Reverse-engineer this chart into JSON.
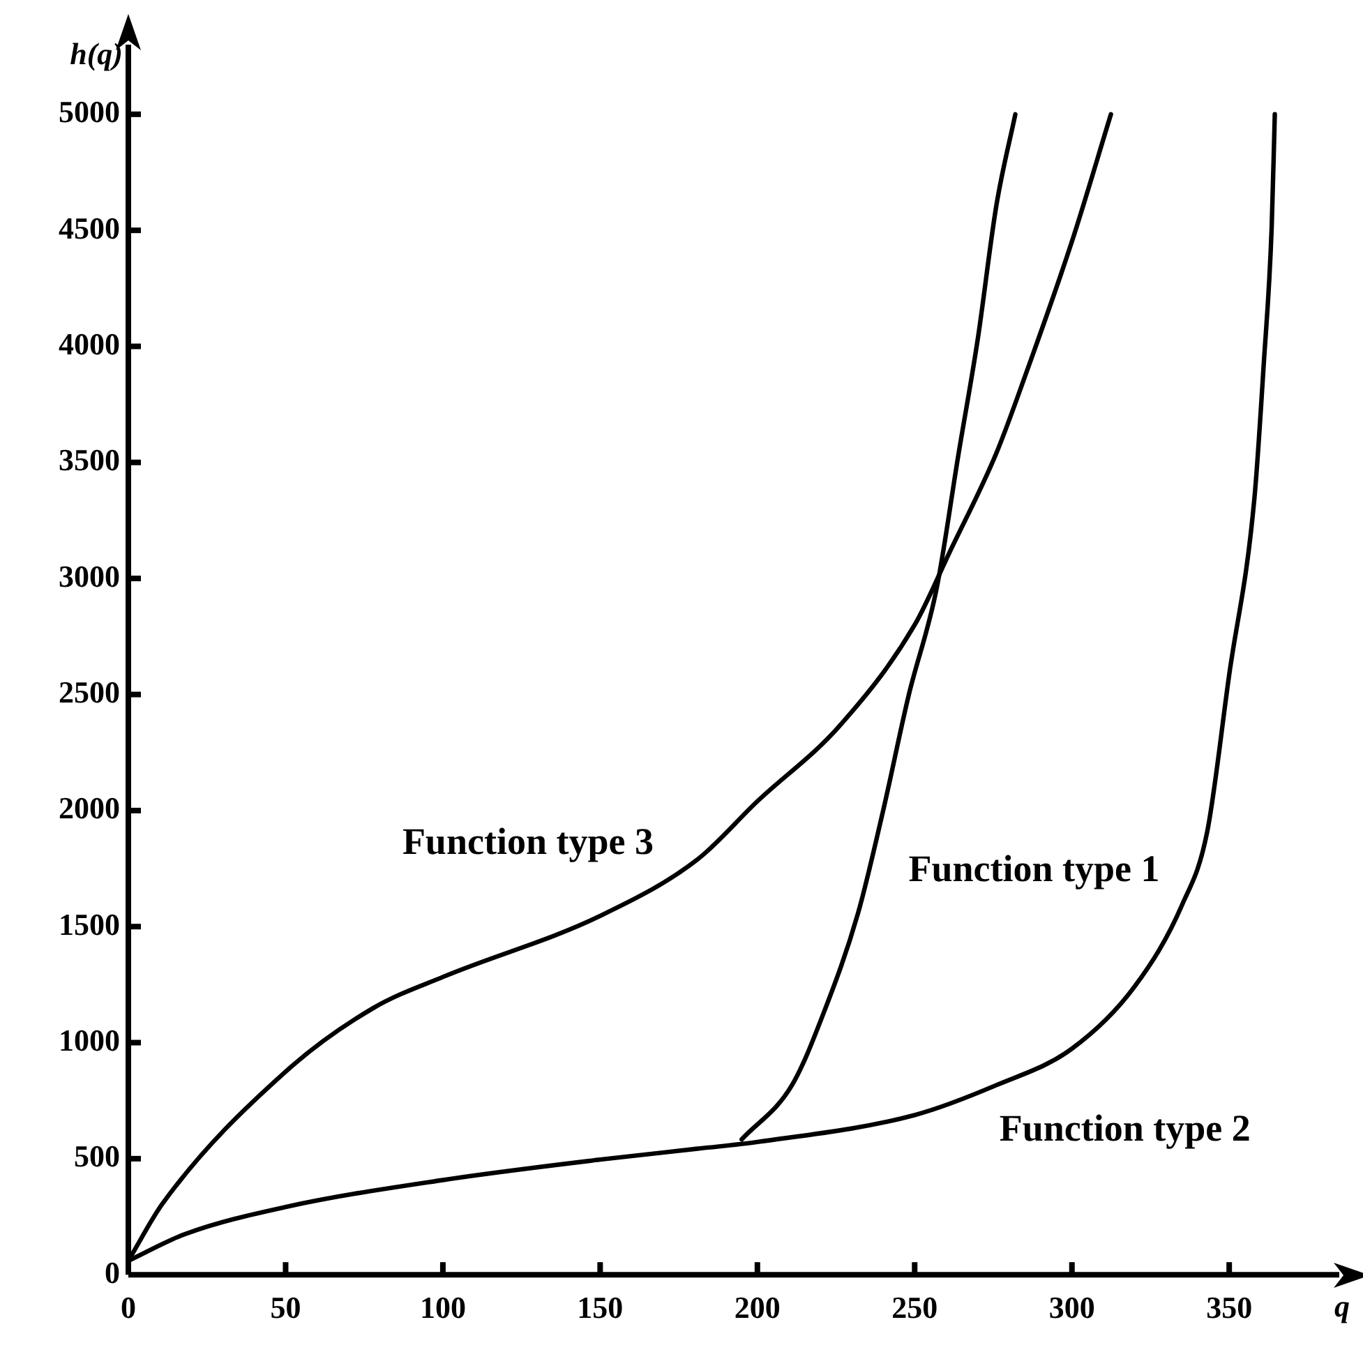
{
  "chart_data": {
    "type": "line",
    "xlabel": "q",
    "ylabel": "h(q)",
    "xlim": [
      0,
      385
    ],
    "xticks": [
      0,
      50,
      100,
      150,
      200,
      250,
      300,
      350
    ],
    "ylim": [
      0,
      5300
    ],
    "yticks": [
      0,
      500,
      1000,
      1500,
      2000,
      2500,
      3000,
      3500,
      4000,
      4500,
      5000
    ],
    "grid": false,
    "legend": false,
    "marker": "none",
    "line_style": "solid",
    "series": [
      {
        "name": "Function type 1",
        "color": "#000000",
        "x": [
          195,
          211,
          221,
          232,
          240,
          248,
          257,
          264,
          270,
          276,
          282
        ],
        "values": [
          583,
          817,
          1126,
          1558,
          2001,
          2491,
          2958,
          3541,
          4026,
          4609,
          5000
        ]
      },
      {
        "name": "Function type 2",
        "color": "#000000",
        "x": [
          0,
          18,
          50,
          100,
          150,
          181,
          200,
          250,
          276,
          300,
          320,
          335,
          343,
          350,
          358,
          361,
          363.5,
          364.5
        ],
        "values": [
          60,
          175,
          292,
          408,
          496,
          543,
          572,
          688,
          817,
          974,
          1243,
          1593,
          1908,
          2585,
          3343,
          3927,
          4510,
          5000
        ]
      },
      {
        "name": "Function type 3",
        "color": "#000000",
        "x": [
          0,
          11,
          50,
          78,
          100,
          150,
          181,
          200,
          226,
          250,
          261,
          276,
          285,
          300,
          312.4
        ],
        "values": [
          60,
          309,
          875,
          1150,
          1283,
          1546,
          1790,
          2040,
          2363,
          2800,
          3110,
          3541,
          3868,
          4452,
          5000
        ]
      }
    ]
  }
}
